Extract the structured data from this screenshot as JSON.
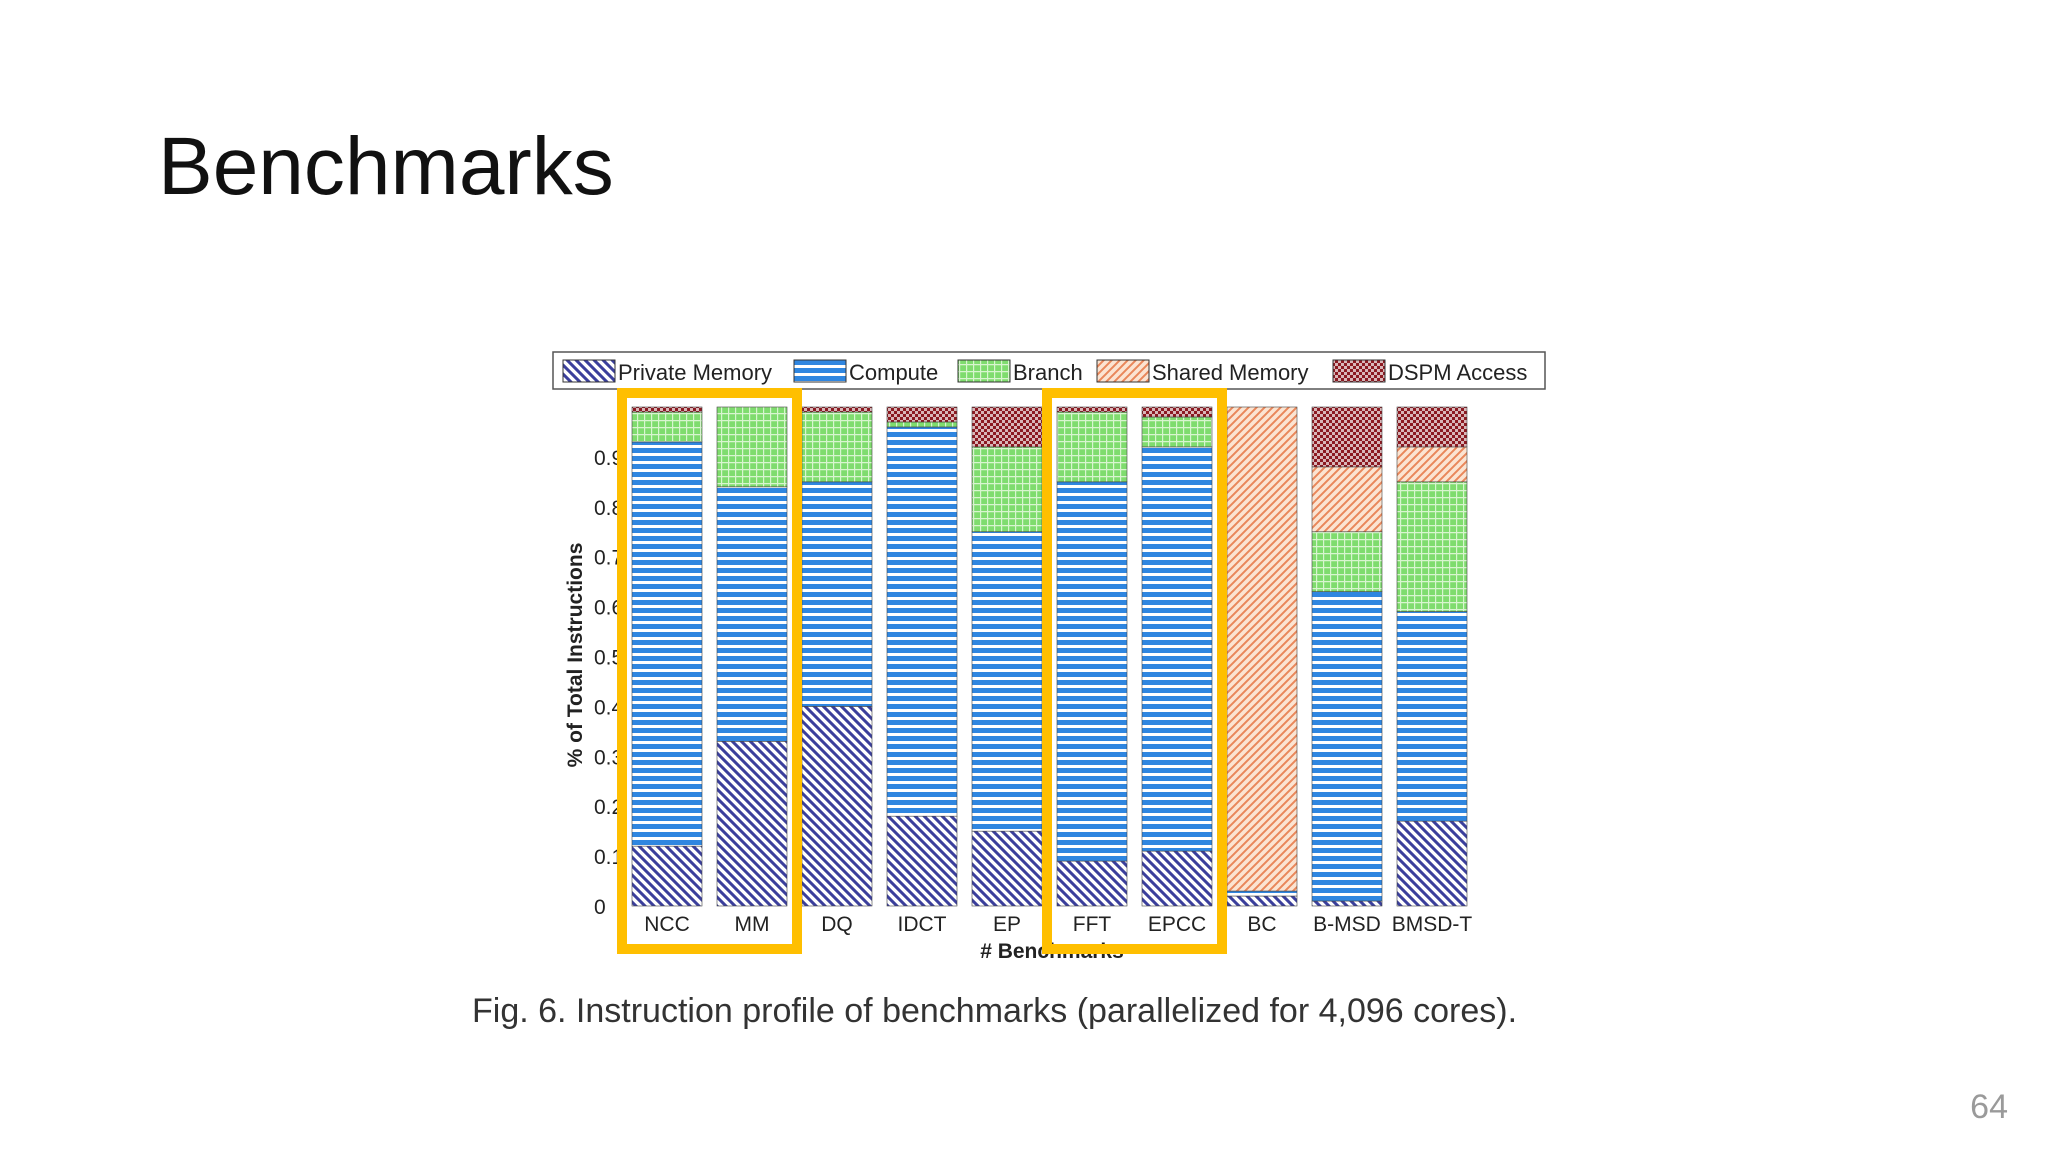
{
  "slide": {
    "title": "Benchmarks",
    "page_number": "64",
    "caption": "Fig. 6. Instruction profile of benchmarks (parallelized for 4,096 cores)."
  },
  "chart_data": {
    "type": "bar",
    "stacked": true,
    "title": "",
    "xlabel": "# Benchmarks",
    "ylabel": "% of Total Instructions",
    "ylim": [
      0,
      1
    ],
    "yticks": [
      "0",
      "0.1",
      "0.2",
      "0.3",
      "0.4",
      "0.5",
      "0.6",
      "0.7",
      "0.8",
      "0.9"
    ],
    "legend_position": "top",
    "categories": [
      "NCC",
      "MM",
      "DQ",
      "IDCT",
      "EP",
      "FFT",
      "EPCC",
      "BC",
      "B-MSD",
      "BMSD-T"
    ],
    "series": [
      {
        "name": "Private Memory",
        "color": "#3b3f9c",
        "pattern": "diagonal",
        "values": [
          0.12,
          0.33,
          0.4,
          0.18,
          0.15,
          0.09,
          0.11,
          0.02,
          0.01,
          0.17
        ]
      },
      {
        "name": "Compute",
        "color": "#2f86e0",
        "pattern": "horizontal",
        "values": [
          0.81,
          0.51,
          0.45,
          0.78,
          0.6,
          0.76,
          0.81,
          0.01,
          0.62,
          0.42
        ]
      },
      {
        "name": "Branch",
        "color": "#7fdc6e",
        "pattern": "grid",
        "values": [
          0.06,
          0.16,
          0.14,
          0.01,
          0.17,
          0.14,
          0.06,
          0.0,
          0.12,
          0.26
        ]
      },
      {
        "name": "Shared Memory",
        "color": "#f0a070",
        "pattern": "diagonal-reverse",
        "values": [
          0.0,
          0.0,
          0.0,
          0.0,
          0.0,
          0.0,
          0.0,
          0.97,
          0.13,
          0.07
        ]
      },
      {
        "name": "DSPM Access",
        "color": "#8c1a22",
        "pattern": "checker",
        "values": [
          0.01,
          0.0,
          0.01,
          0.03,
          0.08,
          0.01,
          0.02,
          0.0,
          0.12,
          0.08
        ]
      }
    ],
    "highlighted_groups": [
      [
        "NCC",
        "MM"
      ],
      [
        "FFT",
        "EPCC"
      ]
    ],
    "highlight_color": "#ffbf00"
  }
}
